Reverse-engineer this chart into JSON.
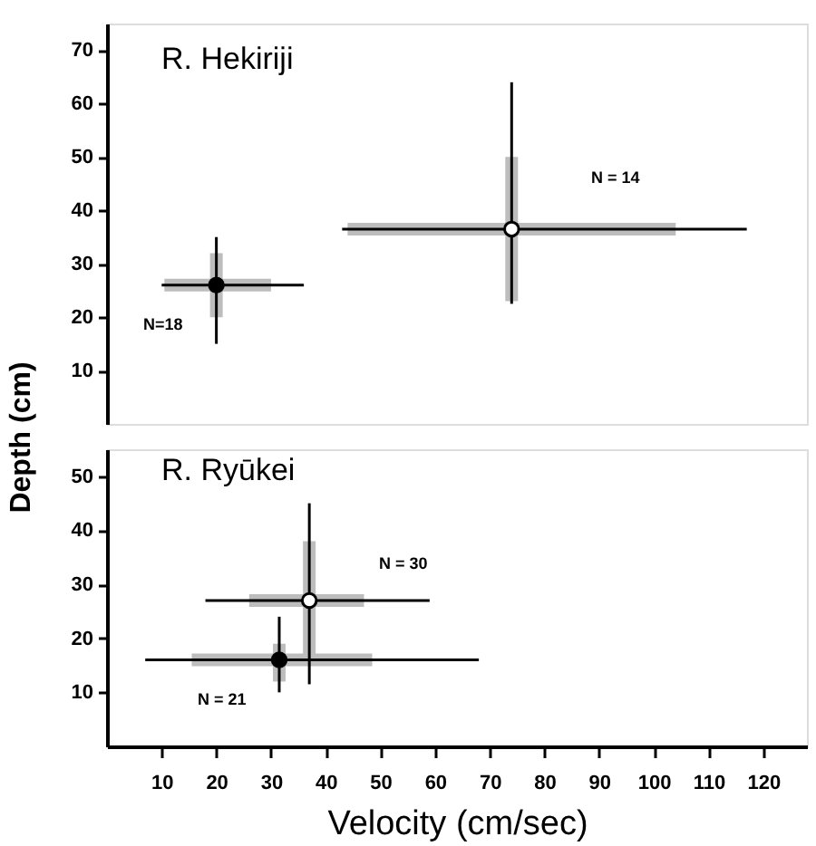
{
  "chart_data": [
    {
      "type": "scatter",
      "title": "R. Hekiriji",
      "ylabel": "Depth (cm)",
      "xlim": [
        0,
        128
      ],
      "ylim": [
        0,
        75
      ],
      "yticks": [
        10,
        20,
        30,
        40,
        50,
        60,
        70
      ],
      "tick_labels": "y",
      "marker": "circle",
      "series": [
        {
          "type": "line",
          "marker": "none",
          "color": "#000000",
          "x": [
            10,
            36
          ],
          "values": [
            26,
            26
          ]
        },
        {
          "type": "line",
          "marker": "none",
          "color": "#000000",
          "x": [
            20,
            20
          ],
          "values": [
            15,
            35
          ]
        },
        {
          "type": "line",
          "marker": "none",
          "color": "#000000",
          "x": [
            43,
            117
          ],
          "values": [
            36.5,
            36.5
          ]
        },
        {
          "type": "line",
          "marker": "none",
          "color": "#000000",
          "x": [
            74,
            74
          ],
          "values": [
            22.5,
            64
          ]
        },
        {
          "color": "#000000",
          "x": [
            20
          ],
          "values": [
            26
          ],
          "errors": [
            [
              20,
              32
            ]
          ],
          "xerrors": [
            [
              10.5,
              30
            ]
          ]
        },
        {
          "color": "#ffffff",
          "x": [
            74
          ],
          "values": [
            36.5
          ],
          "errors": [
            [
              23,
              50
            ]
          ],
          "xerrors": [
            [
              44,
              104
            ]
          ]
        }
      ],
      "annotations": [
        "N = 14",
        "N=18"
      ]
    },
    {
      "type": "scatter",
      "title": "R. Ryūkei",
      "xlabel": "Velocity (cm/sec)",
      "xlim": [
        0,
        128
      ],
      "ylim": [
        0,
        55
      ],
      "xticks": [
        10,
        20,
        30,
        40,
        50,
        60,
        70,
        80,
        90,
        100,
        110,
        120
      ],
      "yticks": [
        10,
        20,
        30,
        40,
        50
      ],
      "marker": "circle",
      "series": [
        {
          "type": "line",
          "marker": "none",
          "color": "#000000",
          "x": [
            18,
            59
          ],
          "values": [
            27,
            27
          ]
        },
        {
          "type": "line",
          "marker": "none",
          "color": "#000000",
          "x": [
            37,
            37
          ],
          "values": [
            11.5,
            45
          ]
        },
        {
          "type": "line",
          "marker": "none",
          "color": "#000000",
          "x": [
            7,
            68
          ],
          "values": [
            16,
            16
          ]
        },
        {
          "type": "line",
          "marker": "none",
          "color": "#000000",
          "x": [
            31.5,
            31.5
          ],
          "values": [
            10,
            24
          ]
        },
        {
          "color": "#ffffff",
          "x": [
            37
          ],
          "values": [
            27
          ],
          "errors": [
            [
              16,
              38
            ]
          ],
          "xerrors": [
            [
              26,
              47
            ]
          ]
        },
        {
          "color": "#000000",
          "x": [
            31.5
          ],
          "values": [
            16
          ],
          "errors": [
            [
              12,
              19
            ]
          ],
          "xerrors": [
            [
              15.5,
              48.5
            ]
          ]
        }
      ],
      "annotations": [
        "N = 30",
        "N = 21"
      ]
    }
  ]
}
